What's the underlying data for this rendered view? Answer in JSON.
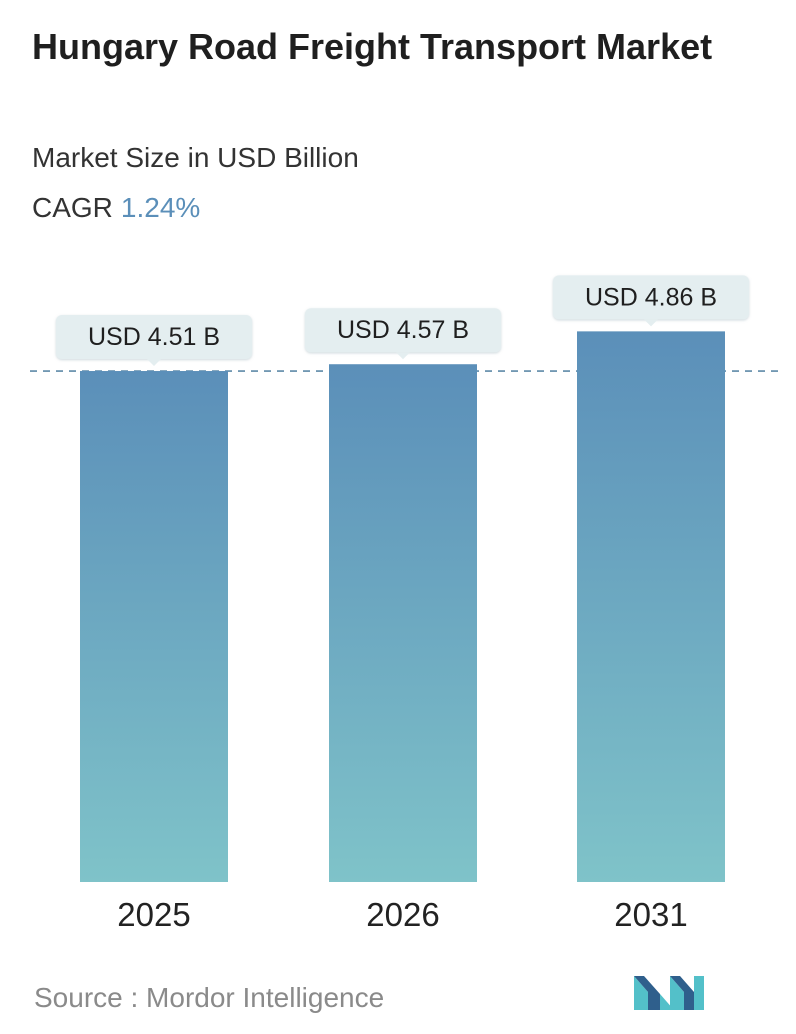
{
  "header": {
    "title": "Hungary Road Freight Transport Market",
    "subtitle": "Market Size in USD Billion",
    "cagr_label": "CAGR",
    "cagr_value": "1.24%"
  },
  "chart_data": {
    "type": "bar",
    "categories": [
      "2025",
      "2026",
      "2031"
    ],
    "values": [
      4.51,
      4.57,
      4.86
    ],
    "data_labels": [
      "USD 4.51 B",
      "USD 4.57 B",
      "USD 4.86 B"
    ],
    "reference_line": "dashed line at the 2025 value",
    "legend": "none",
    "grid": false
  },
  "footer": {
    "source": "Source :  Mordor Intelligence"
  },
  "colors": {
    "bar_top": "#5b8fb9",
    "bar_bottom": "#7fc3c9",
    "label_box": "#e4eef0",
    "dashed_line": "#5f8aa8",
    "cagr_accent": "#5b8fb9",
    "logo_dark": "#2f5f8c",
    "logo_light": "#53c0c9"
  }
}
